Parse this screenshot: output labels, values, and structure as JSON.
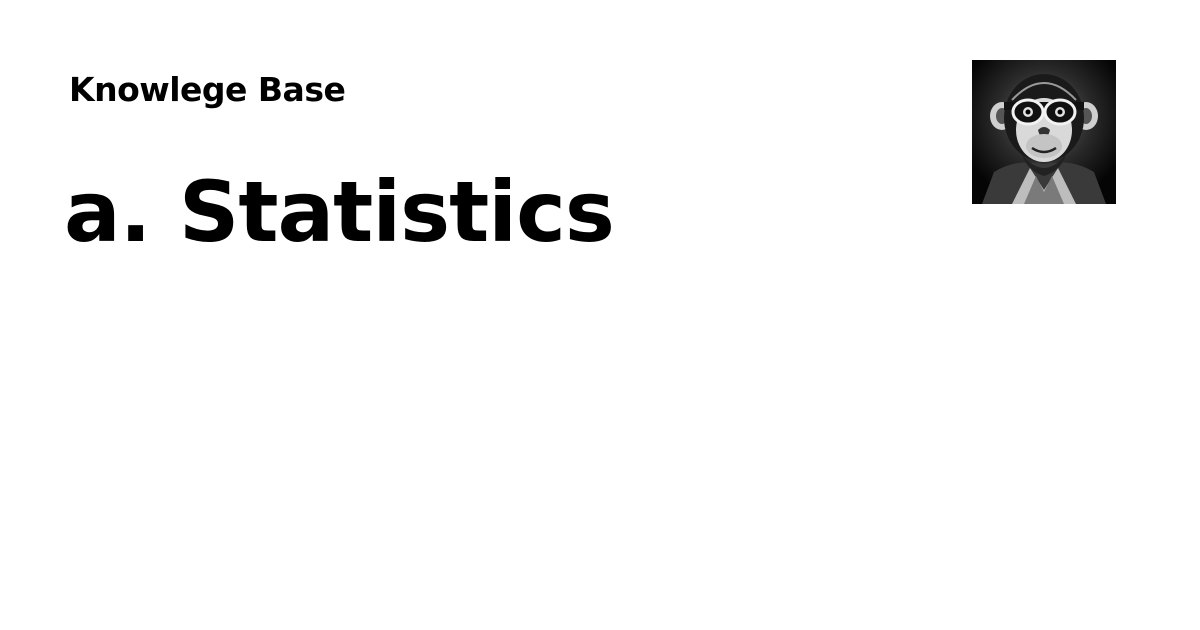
{
  "site": {
    "name": "Knowlege Base"
  },
  "page": {
    "title": "a. Statistics"
  },
  "logo": {
    "icon": "monkey-with-goggles-avatar",
    "colors": {
      "background": "#0b0b0b",
      "fur": "#1a1a1a",
      "face": "#d9d9d9",
      "highlight": "#f2f2f2"
    }
  }
}
